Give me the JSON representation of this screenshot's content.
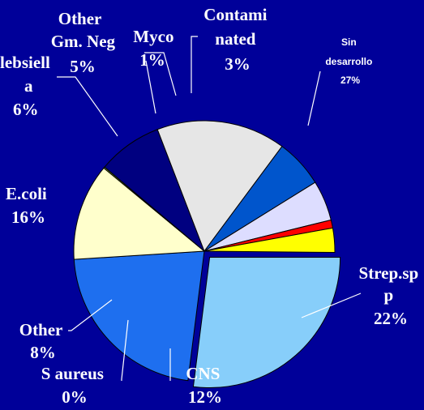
{
  "chart_data": {
    "type": "pie",
    "title": "",
    "legend": "none",
    "slices": [
      {
        "key": "sin",
        "name_lines": [
          "Sin",
          "desarrollo"
        ],
        "value": 27,
        "label": "27%",
        "color": "#87CEFA",
        "exploded": true
      },
      {
        "key": "strep",
        "name_lines": [
          "Strep.sp",
          "p"
        ],
        "value": 22,
        "label": "22%",
        "color": "#1E6FEF",
        "exploded": false
      },
      {
        "key": "cns",
        "name_lines": [
          "CNS"
        ],
        "value": 12,
        "label": "12%",
        "color": "#FFFFCC",
        "exploded": false
      },
      {
        "key": "saureus",
        "name_lines": [
          "S aureus"
        ],
        "value": 0,
        "label": "0%",
        "color": "#99CC33",
        "exploded": false
      },
      {
        "key": "other",
        "name_lines": [
          "Other"
        ],
        "value": 8,
        "label": "8%",
        "color": "#000080",
        "exploded": false
      },
      {
        "key": "ecoli",
        "name_lines": [
          "E.coli"
        ],
        "value": 16,
        "label": "16%",
        "color": "#E6E6E6",
        "exploded": false
      },
      {
        "key": "klebsiella",
        "name_lines": [
          "lebsiell",
          "a"
        ],
        "value": 6,
        "label": "6%",
        "color": "#0055CC",
        "exploded": false
      },
      {
        "key": "othergmneg",
        "name_lines": [
          "Other",
          "Gm. Neg"
        ],
        "value": 5,
        "label": "5%",
        "color": "#DDDDFF",
        "exploded": false
      },
      {
        "key": "myco",
        "name_lines": [
          "Myco"
        ],
        "value": 1,
        "label": "1%",
        "color": "#FF0000",
        "exploded": false
      },
      {
        "key": "contaminated",
        "name_lines": [
          "Contami",
          "nated"
        ],
        "value": 3,
        "label": "3%",
        "color": "#FFFF00",
        "exploded": false
      }
    ]
  }
}
